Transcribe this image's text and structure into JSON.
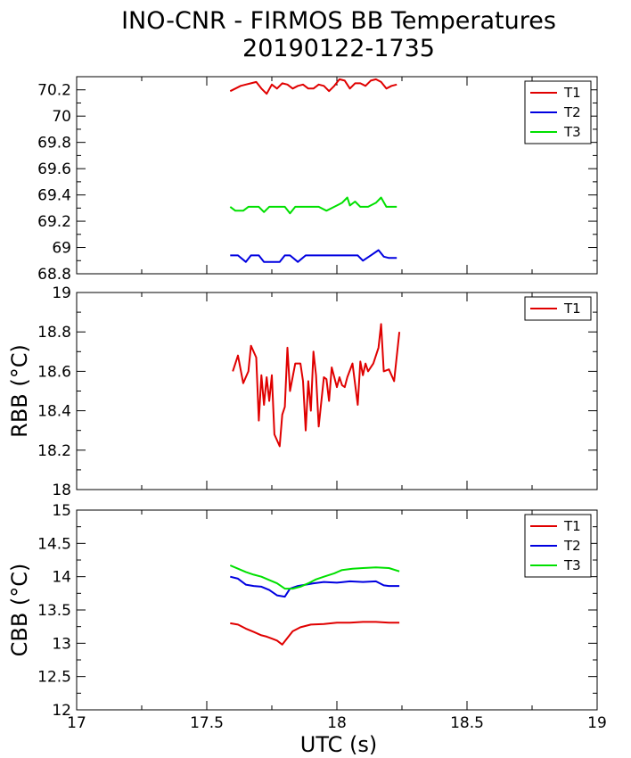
{
  "figure": {
    "title": "INO-CNR - FIRMOS BB Temperatures",
    "subtitle": "20190122-1735",
    "xlabel": "UTC (s)",
    "x_ticks": [
      "17",
      "17.5",
      "18",
      "18.5",
      "19"
    ]
  },
  "colors": {
    "T1": "#e00000",
    "T2": "#0000e0",
    "T3": "#00e000",
    "axis": "#000000"
  },
  "chart_data": [
    {
      "type": "line",
      "title": "",
      "xlabel": "UTC (s)",
      "ylabel": "",
      "xlim": [
        17,
        19
      ],
      "ylim": [
        68.8,
        70.3
      ],
      "yticks": [
        "68.8",
        "69",
        "69.2",
        "69.4",
        "69.6",
        "69.8",
        "70",
        "70.2"
      ],
      "legend": {
        "position": "top-right",
        "entries": [
          "T1",
          "T2",
          "T3"
        ]
      },
      "grid": false,
      "series": [
        {
          "name": "T1",
          "color": "#e00000",
          "x": [
            17.59,
            17.61,
            17.63,
            17.65,
            17.67,
            17.69,
            17.71,
            17.73,
            17.75,
            17.77,
            17.79,
            17.81,
            17.83,
            17.85,
            17.87,
            17.89,
            17.91,
            17.93,
            17.95,
            17.97,
            17.99,
            18.01,
            18.03,
            18.05,
            18.07,
            18.09,
            18.11,
            18.13,
            18.15,
            18.17,
            18.19,
            18.21,
            18.23
          ],
          "y": [
            70.19,
            70.21,
            70.23,
            70.24,
            70.25,
            70.26,
            70.21,
            70.17,
            70.24,
            70.21,
            70.25,
            70.24,
            70.21,
            70.23,
            70.24,
            70.21,
            70.21,
            70.24,
            70.23,
            70.19,
            70.23,
            70.28,
            70.27,
            70.21,
            70.25,
            70.25,
            70.23,
            70.27,
            70.28,
            70.26,
            70.21,
            70.23,
            70.24
          ]
        },
        {
          "name": "T2",
          "color": "#0000e0",
          "x": [
            17.59,
            17.62,
            17.65,
            17.67,
            17.7,
            17.72,
            17.75,
            17.78,
            17.8,
            17.82,
            17.85,
            17.88,
            17.9,
            17.95,
            18.0,
            18.05,
            18.08,
            18.1,
            18.13,
            18.16,
            18.18,
            18.2,
            18.23
          ],
          "y": [
            68.94,
            68.94,
            68.89,
            68.94,
            68.94,
            68.89,
            68.89,
            68.89,
            68.94,
            68.94,
            68.89,
            68.94,
            68.94,
            68.94,
            68.94,
            68.94,
            68.94,
            68.9,
            68.94,
            68.98,
            68.93,
            68.92,
            68.92
          ]
        },
        {
          "name": "T3",
          "color": "#00e000",
          "x": [
            17.59,
            17.61,
            17.64,
            17.66,
            17.7,
            17.72,
            17.74,
            17.77,
            17.8,
            17.82,
            17.84,
            17.87,
            17.9,
            17.93,
            17.96,
            17.99,
            18.02,
            18.04,
            18.05,
            18.07,
            18.09,
            18.12,
            18.15,
            18.17,
            18.19,
            18.21,
            18.23
          ],
          "y": [
            69.31,
            69.28,
            69.28,
            69.31,
            69.31,
            69.27,
            69.31,
            69.31,
            69.31,
            69.26,
            69.31,
            69.31,
            69.31,
            69.31,
            69.28,
            69.31,
            69.34,
            69.38,
            69.32,
            69.35,
            69.31,
            69.31,
            69.34,
            69.38,
            69.31,
            69.31,
            69.31
          ]
        }
      ]
    },
    {
      "type": "line",
      "title": "",
      "xlabel": "UTC (s)",
      "ylabel": "RBB (°C)",
      "xlim": [
        17,
        19
      ],
      "ylim": [
        18,
        19
      ],
      "yticks": [
        "18",
        "18.2",
        "18.4",
        "18.6",
        "18.8",
        "19"
      ],
      "legend": {
        "position": "top-right",
        "entries": [
          "T1"
        ]
      },
      "grid": false,
      "series": [
        {
          "name": "T1",
          "color": "#e00000",
          "x": [
            17.6,
            17.62,
            17.64,
            17.66,
            17.67,
            17.69,
            17.7,
            17.71,
            17.72,
            17.73,
            17.74,
            17.75,
            17.76,
            17.78,
            17.79,
            17.8,
            17.81,
            17.82,
            17.84,
            17.85,
            17.86,
            17.87,
            17.88,
            17.89,
            17.9,
            17.91,
            17.92,
            17.93,
            17.95,
            17.96,
            17.97,
            17.98,
            18.0,
            18.01,
            18.02,
            18.03,
            18.04,
            18.06,
            18.08,
            18.09,
            18.1,
            18.11,
            18.12,
            18.14,
            18.16,
            18.17,
            18.18,
            18.2,
            18.22,
            18.24
          ],
          "y": [
            18.6,
            18.68,
            18.54,
            18.6,
            18.73,
            18.67,
            18.35,
            18.58,
            18.43,
            18.57,
            18.45,
            18.58,
            18.28,
            18.22,
            18.38,
            18.42,
            18.72,
            18.5,
            18.64,
            18.64,
            18.64,
            18.55,
            18.3,
            18.55,
            18.4,
            18.7,
            18.58,
            18.32,
            18.57,
            18.56,
            18.45,
            18.62,
            18.52,
            18.57,
            18.53,
            18.52,
            18.57,
            18.64,
            18.43,
            18.65,
            18.58,
            18.64,
            18.6,
            18.64,
            18.72,
            18.84,
            18.6,
            18.61,
            18.55,
            18.8
          ]
        }
      ]
    },
    {
      "type": "line",
      "title": "",
      "xlabel": "UTC (s)",
      "ylabel": "CBB (°C)",
      "xlim": [
        17,
        19
      ],
      "ylim": [
        12,
        15
      ],
      "yticks": [
        "12",
        "12.5",
        "13",
        "13.5",
        "14",
        "14.5",
        "15"
      ],
      "legend": {
        "position": "top-right",
        "entries": [
          "T1",
          "T2",
          "T3"
        ]
      },
      "grid": false,
      "series": [
        {
          "name": "T1",
          "color": "#e00000",
          "x": [
            17.59,
            17.62,
            17.65,
            17.68,
            17.71,
            17.73,
            17.75,
            17.77,
            17.79,
            17.81,
            17.83,
            17.86,
            17.9,
            17.95,
            18.0,
            18.05,
            18.1,
            18.15,
            18.2,
            18.24
          ],
          "y": [
            13.3,
            13.28,
            13.22,
            13.17,
            13.12,
            13.1,
            13.07,
            13.04,
            12.98,
            13.08,
            13.18,
            13.24,
            13.28,
            13.29,
            13.31,
            13.31,
            13.32,
            13.32,
            13.31,
            13.31
          ]
        },
        {
          "name": "T2",
          "color": "#0000e0",
          "x": [
            17.59,
            17.62,
            17.65,
            17.68,
            17.71,
            17.74,
            17.77,
            17.8,
            17.82,
            17.85,
            17.88,
            17.91,
            17.95,
            18.0,
            18.05,
            18.1,
            18.15,
            18.18,
            18.2,
            18.24
          ],
          "y": [
            14.0,
            13.97,
            13.88,
            13.86,
            13.85,
            13.8,
            13.72,
            13.7,
            13.82,
            13.86,
            13.88,
            13.9,
            13.92,
            13.91,
            13.93,
            13.92,
            13.93,
            13.87,
            13.86,
            13.86
          ]
        },
        {
          "name": "T3",
          "color": "#00e000",
          "x": [
            17.59,
            17.62,
            17.65,
            17.68,
            17.71,
            17.74,
            17.77,
            17.8,
            17.83,
            17.86,
            17.89,
            17.92,
            17.95,
            17.99,
            18.02,
            18.06,
            18.1,
            18.15,
            18.2,
            18.24
          ],
          "y": [
            14.17,
            14.12,
            14.07,
            14.03,
            14.0,
            13.95,
            13.9,
            13.82,
            13.82,
            13.85,
            13.9,
            13.96,
            14.0,
            14.05,
            14.1,
            14.12,
            14.13,
            14.14,
            14.13,
            14.08
          ]
        }
      ]
    }
  ]
}
